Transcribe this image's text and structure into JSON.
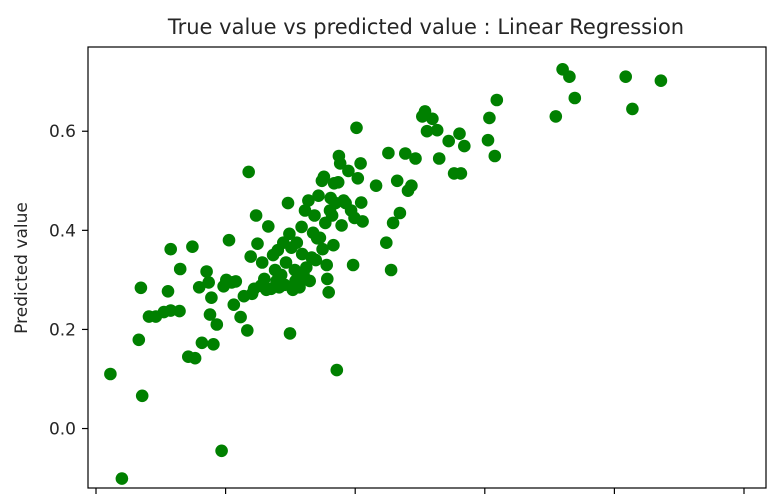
{
  "chart_data": {
    "type": "scatter",
    "title": "True value vs predicted value : Linear Regression",
    "xlabel": "",
    "ylabel": "Predicted value",
    "xlim": [
      0.0,
      1.0
    ],
    "ylim": [
      -0.12,
      0.77
    ],
    "yticks": [
      0.0,
      0.2,
      0.4,
      0.6
    ],
    "ytick_labels": [
      "0.0",
      "0.2",
      "0.4",
      "0.6"
    ],
    "xticks_count": 6,
    "grid": false,
    "marker_color": "#008000",
    "series": [
      {
        "points": [
          [
            0.033,
            0.11
          ],
          [
            0.05,
            -0.101
          ],
          [
            0.075,
            0.179
          ],
          [
            0.078,
            0.284
          ],
          [
            0.08,
            0.066
          ],
          [
            0.09,
            0.226
          ],
          [
            0.1,
            0.226
          ],
          [
            0.112,
            0.235
          ],
          [
            0.118,
            0.277
          ],
          [
            0.122,
            0.238
          ],
          [
            0.122,
            0.362
          ],
          [
            0.135,
            0.237
          ],
          [
            0.136,
            0.322
          ],
          [
            0.148,
            0.145
          ],
          [
            0.154,
            0.367
          ],
          [
            0.158,
            0.142
          ],
          [
            0.164,
            0.285
          ],
          [
            0.168,
            0.173
          ],
          [
            0.175,
            0.317
          ],
          [
            0.178,
            0.295
          ],
          [
            0.18,
            0.23
          ],
          [
            0.182,
            0.264
          ],
          [
            0.185,
            0.17
          ],
          [
            0.19,
            0.21
          ],
          [
            0.197,
            -0.045
          ],
          [
            0.2,
            0.287
          ],
          [
            0.204,
            0.3
          ],
          [
            0.208,
            0.38
          ],
          [
            0.212,
            0.295
          ],
          [
            0.215,
            0.25
          ],
          [
            0.218,
            0.297
          ],
          [
            0.225,
            0.225
          ],
          [
            0.23,
            0.267
          ],
          [
            0.235,
            0.198
          ],
          [
            0.237,
            0.518
          ],
          [
            0.24,
            0.347
          ],
          [
            0.242,
            0.272
          ],
          [
            0.245,
            0.282
          ],
          [
            0.248,
            0.43
          ],
          [
            0.25,
            0.373
          ],
          [
            0.255,
            0.288
          ],
          [
            0.257,
            0.335
          ],
          [
            0.26,
            0.302
          ],
          [
            0.263,
            0.28
          ],
          [
            0.266,
            0.408
          ],
          [
            0.27,
            0.282
          ],
          [
            0.273,
            0.35
          ],
          [
            0.276,
            0.32
          ],
          [
            0.278,
            0.298
          ],
          [
            0.28,
            0.36
          ],
          [
            0.282,
            0.285
          ],
          [
            0.285,
            0.31
          ],
          [
            0.288,
            0.375
          ],
          [
            0.29,
            0.29
          ],
          [
            0.292,
            0.335
          ],
          [
            0.295,
            0.455
          ],
          [
            0.297,
            0.393
          ],
          [
            0.298,
            0.192
          ],
          [
            0.3,
            0.365
          ],
          [
            0.302,
            0.28
          ],
          [
            0.305,
            0.32
          ],
          [
            0.306,
            0.298
          ],
          [
            0.308,
            0.375
          ],
          [
            0.31,
            0.295
          ],
          [
            0.312,
            0.285
          ],
          [
            0.315,
            0.407
          ],
          [
            0.316,
            0.352
          ],
          [
            0.318,
            0.31
          ],
          [
            0.32,
            0.44
          ],
          [
            0.322,
            0.325
          ],
          [
            0.325,
            0.46
          ],
          [
            0.327,
            0.298
          ],
          [
            0.33,
            0.345
          ],
          [
            0.332,
            0.395
          ],
          [
            0.334,
            0.43
          ],
          [
            0.336,
            0.34
          ],
          [
            0.338,
            0.384
          ],
          [
            0.34,
            0.47
          ],
          [
            0.342,
            0.385
          ],
          [
            0.345,
            0.5
          ],
          [
            0.346,
            0.362
          ],
          [
            0.348,
            0.508
          ],
          [
            0.35,
            0.415
          ],
          [
            0.352,
            0.33
          ],
          [
            0.353,
            0.302
          ],
          [
            0.355,
            0.275
          ],
          [
            0.357,
            0.44
          ],
          [
            0.358,
            0.465
          ],
          [
            0.36,
            0.43
          ],
          [
            0.362,
            0.37
          ],
          [
            0.363,
            0.495
          ],
          [
            0.365,
            0.455
          ],
          [
            0.367,
            0.118
          ],
          [
            0.369,
            0.497
          ],
          [
            0.37,
            0.55
          ],
          [
            0.372,
            0.535
          ],
          [
            0.374,
            0.41
          ],
          [
            0.377,
            0.46
          ],
          [
            0.38,
            0.455
          ],
          [
            0.384,
            0.52
          ],
          [
            0.388,
            0.44
          ],
          [
            0.391,
            0.33
          ],
          [
            0.393,
            0.425
          ],
          [
            0.396,
            0.607
          ],
          [
            0.398,
            0.505
          ],
          [
            0.402,
            0.535
          ],
          [
            0.403,
            0.456
          ],
          [
            0.405,
            0.418
          ],
          [
            0.425,
            0.49
          ],
          [
            0.44,
            0.375
          ],
          [
            0.443,
            0.556
          ],
          [
            0.447,
            0.32
          ],
          [
            0.45,
            0.415
          ],
          [
            0.456,
            0.5
          ],
          [
            0.46,
            0.435
          ],
          [
            0.468,
            0.555
          ],
          [
            0.472,
            0.48
          ],
          [
            0.477,
            0.49
          ],
          [
            0.483,
            0.545
          ],
          [
            0.493,
            0.63
          ],
          [
            0.497,
            0.64
          ],
          [
            0.5,
            0.6
          ],
          [
            0.508,
            0.625
          ],
          [
            0.515,
            0.602
          ],
          [
            0.518,
            0.545
          ],
          [
            0.532,
            0.58
          ],
          [
            0.54,
            0.515
          ],
          [
            0.548,
            0.595
          ],
          [
            0.55,
            0.515
          ],
          [
            0.555,
            0.57
          ],
          [
            0.59,
            0.582
          ],
          [
            0.592,
            0.627
          ],
          [
            0.6,
            0.55
          ],
          [
            0.603,
            0.663
          ],
          [
            0.69,
            0.63
          ],
          [
            0.7,
            0.725
          ],
          [
            0.71,
            0.71
          ],
          [
            0.718,
            0.667
          ],
          [
            0.793,
            0.71
          ],
          [
            0.803,
            0.645
          ],
          [
            0.845,
            0.702
          ]
        ]
      }
    ]
  }
}
